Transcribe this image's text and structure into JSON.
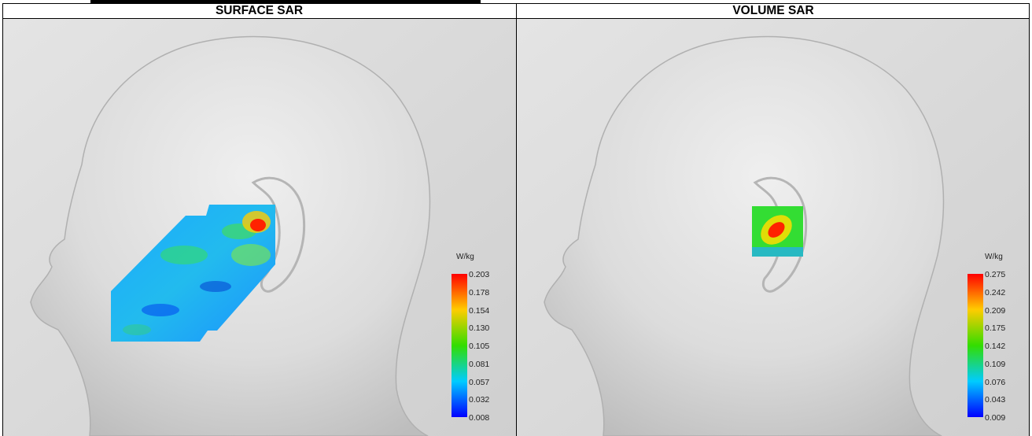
{
  "panels": [
    {
      "title": "SURFACE SAR",
      "unit": "W/kg",
      "scale": [
        "0.203",
        "0.178",
        "0.154",
        "0.130",
        "0.105",
        "0.081",
        "0.057",
        "0.032",
        "0.008"
      ]
    },
    {
      "title": "VOLUME SAR",
      "unit": "W/kg",
      "scale": [
        "0.275",
        "0.242",
        "0.209",
        "0.175",
        "0.142",
        "0.109",
        "0.076",
        "0.043",
        "0.009"
      ]
    }
  ]
}
